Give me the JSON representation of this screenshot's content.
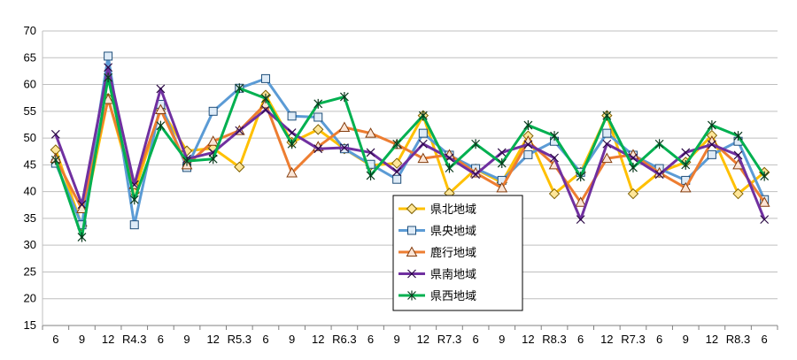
{
  "chart_data": {
    "type": "line",
    "x": [
      "6",
      "9",
      "12",
      "R4.3",
      "6",
      "9",
      "12",
      "R5.3",
      "6",
      "9",
      "12",
      "R6.3",
      "6",
      "9",
      "12",
      "R7.3",
      "6",
      "9",
      "12",
      "R8.3",
      "6",
      "12",
      "R7.3",
      "6",
      "9",
      "12",
      "R8.3",
      "6"
    ],
    "ylim": [
      15,
      70
    ],
    "yticks": [
      15,
      20,
      25,
      30,
      35,
      40,
      45,
      50,
      55,
      60,
      65,
      70
    ],
    "grid": true,
    "legend_position": "inside-bottom-right",
    "series": [
      {
        "name": "県北地域",
        "color": "#FFC000",
        "marker": "diamond",
        "values": [
          47.8,
          33.6,
          57.4,
          39.8,
          55.4,
          47.6,
          48.1,
          44.6,
          58.0,
          49.2,
          51.6,
          48.0,
          44.9,
          45.3,
          54.2,
          39.7,
          44.2,
          41.7,
          50.4,
          39.6,
          43.6,
          54.2,
          39.6,
          43.6,
          45.5,
          50.5,
          39.6,
          43.6
        ]
      },
      {
        "name": "県央地域",
        "color": "#5B9BD5",
        "marker": "square",
        "values": [
          45.3,
          33.8,
          65.3,
          33.8,
          56.3,
          44.5,
          55.0,
          59.3,
          61.1,
          54.1,
          53.9,
          48.0,
          45.1,
          42.3,
          50.9,
          46.8,
          44.3,
          42.1,
          46.9,
          49.4,
          43.6,
          50.9,
          46.8,
          44.3,
          42.1,
          46.9,
          49.4,
          38.5
        ]
      },
      {
        "name": "鹿行地域",
        "color": "#ED7D31",
        "marker": "triangle",
        "values": [
          46.2,
          36.8,
          57.2,
          41.3,
          55.3,
          45.0,
          49.4,
          51.4,
          56.4,
          43.5,
          48.4,
          52.0,
          50.9,
          48.8,
          46.2,
          46.9,
          43.5,
          40.7,
          49.4,
          45.0,
          38.0,
          46.2,
          46.9,
          43.5,
          40.7,
          49.4,
          45.0,
          38.0
        ]
      },
      {
        "name": "県南地域",
        "color": "#7030A0",
        "marker": "x",
        "values": [
          50.7,
          37.6,
          63.2,
          41.3,
          59.2,
          46.1,
          47.3,
          51.4,
          55.3,
          51.0,
          48.0,
          48.2,
          47.3,
          43.7,
          48.9,
          46.3,
          43.2,
          47.3,
          48.8,
          46.3,
          34.8,
          48.9,
          46.3,
          43.2,
          47.3,
          48.8,
          46.8,
          34.8
        ]
      },
      {
        "name": "県西地域",
        "color": "#00B050",
        "marker": "asterisk",
        "values": [
          45.9,
          31.5,
          61.3,
          38.5,
          52.3,
          45.7,
          46.1,
          59.3,
          57.4,
          48.9,
          56.4,
          57.7,
          43.0,
          48.9,
          54.2,
          44.4,
          48.9,
          45.3,
          52.4,
          50.4,
          42.8,
          54.2,
          44.5,
          48.9,
          45.0,
          52.4,
          50.4,
          42.9
        ]
      }
    ]
  }
}
